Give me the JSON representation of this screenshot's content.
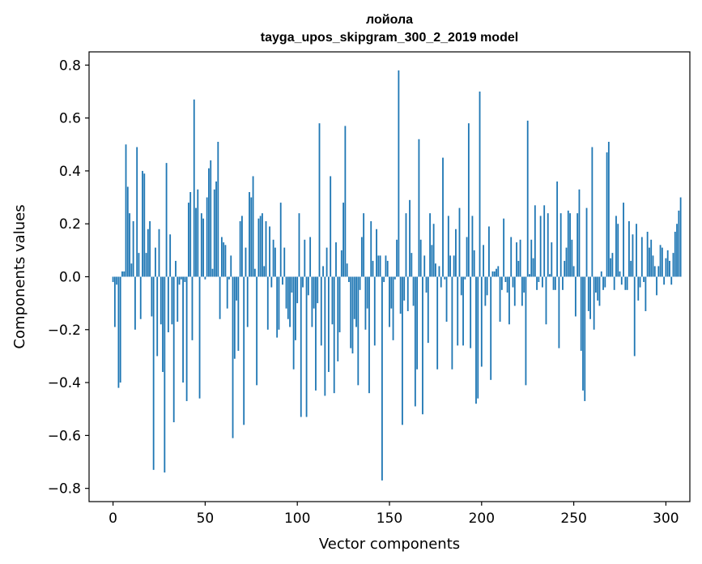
{
  "chart_data": {
    "type": "bar",
    "title_line1": "лойола",
    "title_line2": "tayga_upos_skipgram_300_2_2019 model",
    "xlabel": "Vector components",
    "ylabel": "Components values",
    "xlim": [
      -13,
      313
    ],
    "ylim": [
      -0.85,
      0.85
    ],
    "x_ticks": [
      0,
      50,
      100,
      150,
      200,
      250,
      300
    ],
    "x_tick_labels": [
      "0",
      "50",
      "100",
      "150",
      "200",
      "250",
      "300"
    ],
    "y_ticks": [
      0.8,
      0.6,
      0.4,
      0.2,
      0.0,
      -0.2,
      -0.4,
      -0.6,
      -0.8
    ],
    "y_tick_labels": [
      "0.8",
      "0.6",
      "0.4",
      "0.2",
      "0.0",
      "−0.2",
      "−0.4",
      "−0.6",
      "−0.8"
    ],
    "bar_color": "#1f77b4",
    "values": [
      -0.02,
      -0.19,
      -0.03,
      -0.42,
      -0.4,
      0.02,
      0.02,
      0.5,
      0.34,
      0.24,
      0.05,
      0.21,
      -0.2,
      0.49,
      0.09,
      -0.16,
      0.4,
      0.39,
      0.09,
      0.18,
      0.21,
      -0.15,
      -0.73,
      0.11,
      -0.3,
      0.18,
      -0.18,
      -0.36,
      -0.74,
      0.43,
      -0.21,
      0.16,
      -0.18,
      -0.55,
      0.06,
      -0.17,
      -0.03,
      -0.01,
      -0.4,
      -0.02,
      -0.47,
      0.28,
      0.32,
      -0.24,
      0.67,
      0.26,
      0.33,
      -0.46,
      0.24,
      0.22,
      -0.01,
      0.3,
      0.41,
      0.44,
      0.03,
      0.33,
      0.36,
      0.51,
      -0.16,
      0.15,
      0.13,
      0.12,
      -0.12,
      -0.01,
      0.08,
      -0.61,
      -0.31,
      -0.09,
      -0.28,
      0.21,
      0.23,
      -0.56,
      0.11,
      -0.19,
      0.32,
      0.3,
      0.38,
      0.03,
      -0.41,
      0.22,
      0.23,
      0.24,
      0.04,
      0.21,
      -0.2,
      0.19,
      -0.04,
      0.14,
      0.11,
      -0.23,
      -0.2,
      0.28,
      -0.03,
      0.11,
      -0.12,
      -0.16,
      -0.19,
      -0.06,
      -0.35,
      -0.24,
      -0.1,
      0.24,
      -0.53,
      -0.04,
      0.14,
      -0.53,
      -0.07,
      0.15,
      -0.19,
      -0.12,
      -0.43,
      -0.1,
      0.58,
      -0.26,
      0.04,
      -0.45,
      0.11,
      -0.36,
      0.38,
      -0.18,
      -0.44,
      0.13,
      -0.32,
      -0.21,
      0.1,
      0.28,
      0.57,
      0.05,
      -0.02,
      -0.27,
      -0.29,
      -0.16,
      -0.19,
      -0.41,
      -0.05,
      0.15,
      0.24,
      -0.2,
      -0.12,
      -0.44,
      0.21,
      0.06,
      -0.26,
      0.18,
      0.08,
      0.08,
      -0.77,
      -0.02,
      0.08,
      0.06,
      -0.19,
      -0.12,
      -0.24,
      -0.01,
      0.14,
      0.78,
      -0.14,
      -0.56,
      -0.09,
      0.24,
      -0.13,
      0.29,
      0.09,
      -0.11,
      -0.49,
      -0.35,
      0.52,
      0.14,
      -0.52,
      0.08,
      -0.06,
      -0.25,
      0.24,
      0.12,
      0.2,
      0.05,
      -0.35,
      0.04,
      -0.04,
      0.45,
      -0.01,
      -0.17,
      0.23,
      0.08,
      -0.35,
      0.08,
      0.18,
      -0.26,
      0.26,
      -0.07,
      -0.26,
      -0.01,
      0.15,
      0.58,
      -0.27,
      0.23,
      0.1,
      -0.48,
      -0.46,
      0.7,
      -0.34,
      0.12,
      -0.11,
      -0.07,
      0.19,
      -0.39,
      0.02,
      0.02,
      0.03,
      0.04,
      -0.17,
      -0.05,
      0.22,
      -0.02,
      -0.06,
      -0.18,
      0.15,
      -0.04,
      -0.11,
      0.13,
      0.06,
      0.14,
      -0.11,
      -0.06,
      -0.41,
      0.59,
      0.01,
      0.14,
      0.07,
      0.27,
      -0.05,
      -0.02,
      0.23,
      -0.04,
      0.27,
      -0.18,
      0.24,
      0.01,
      0.13,
      -0.05,
      -0.05,
      0.36,
      -0.27,
      0.24,
      -0.05,
      0.06,
      0.11,
      0.25,
      0.24,
      0.14,
      0.04,
      -0.15,
      0.24,
      0.33,
      -0.28,
      -0.43,
      -0.47,
      0.26,
      -0.13,
      -0.16,
      0.49,
      -0.2,
      -0.06,
      -0.09,
      -0.11,
      0.02,
      -0.05,
      -0.04,
      0.47,
      0.51,
      0.07,
      0.09,
      -0.05,
      0.23,
      0.2,
      0.02,
      -0.03,
      0.28,
      -0.05,
      -0.05,
      0.21,
      0.06,
      0.16,
      -0.3,
      0.2,
      -0.09,
      -0.04,
      0.15,
      -0.02,
      -0.13,
      0.17,
      0.11,
      0.14,
      0.08,
      0.04,
      -0.07,
      0.04,
      0.12,
      0.11,
      -0.03,
      0.07,
      0.1,
      0.06,
      -0.03,
      0.09,
      0.17,
      0.2,
      0.25,
      0.3
    ]
  }
}
